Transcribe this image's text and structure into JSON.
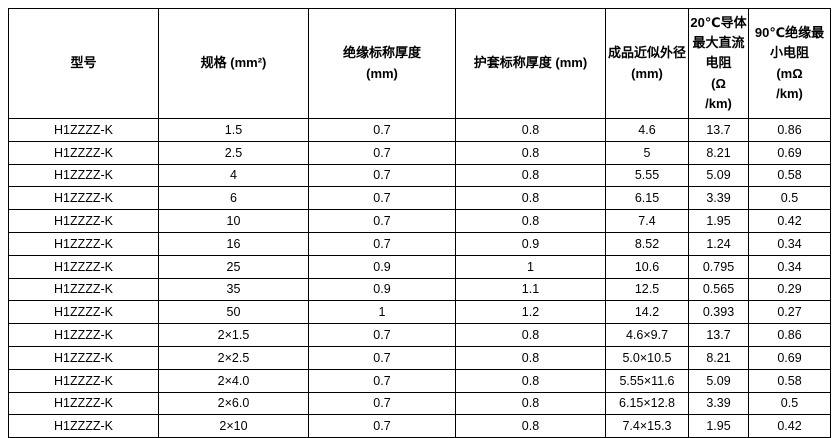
{
  "page": {
    "background_color": "#ffffff",
    "border_color": "#000000",
    "text_color": "#000000"
  },
  "table": {
    "headers": [
      "型号",
      "规格 (mm²)",
      "绝缘标称厚度\n(mm)",
      "护套标称厚度 (mm)",
      "成品近似外径\n(mm)",
      "20℃导体\n最大直流\n电阻\n(Ω\n/km)",
      "90℃绝缘最\n小电阻\n(mΩ\n/km)"
    ],
    "rows": [
      [
        "H1ZZZZ-K",
        "1.5",
        "0.7",
        "0.8",
        "4.6",
        "13.7",
        "0.86"
      ],
      [
        "H1ZZZZ-K",
        "2.5",
        "0.7",
        "0.8",
        "5",
        "8.21",
        "0.69"
      ],
      [
        "H1ZZZZ-K",
        "4",
        "0.7",
        "0.8",
        "5.55",
        "5.09",
        "0.58"
      ],
      [
        "H1ZZZZ-K",
        "6",
        "0.7",
        "0.8",
        "6.15",
        "3.39",
        "0.5"
      ],
      [
        "H1ZZZZ-K",
        "10",
        "0.7",
        "0.8",
        "7.4",
        "1.95",
        "0.42"
      ],
      [
        "H1ZZZZ-K",
        "16",
        "0.7",
        "0.9",
        "8.52",
        "1.24",
        "0.34"
      ],
      [
        "H1ZZZZ-K",
        "25",
        "0.9",
        "1",
        "10.6",
        "0.795",
        "0.34"
      ],
      [
        "H1ZZZZ-K",
        "35",
        "0.9",
        "1.1",
        "12.5",
        "0.565",
        "0.29"
      ],
      [
        "H1ZZZZ-K",
        "50",
        "1",
        "1.2",
        "14.2",
        "0.393",
        "0.27"
      ],
      [
        "H1ZZZZ-K",
        "2×1.5",
        "0.7",
        "0.8",
        "4.6×9.7",
        "13.7",
        "0.86"
      ],
      [
        "H1ZZZZ-K",
        "2×2.5",
        "0.7",
        "0.8",
        "5.0×10.5",
        "8.21",
        "0.69"
      ],
      [
        "H1ZZZZ-K",
        "2×4.0",
        "0.7",
        "0.8",
        "5.55×11.6",
        "5.09",
        "0.58"
      ],
      [
        "H1ZZZZ-K",
        "2×6.0",
        "0.7",
        "0.8",
        "6.15×12.8",
        "3.39",
        "0.5"
      ],
      [
        "H1ZZZZ-K",
        "2×10",
        "0.7",
        "0.8",
        "7.4×15.3",
        "1.95",
        "0.42"
      ]
    ]
  }
}
